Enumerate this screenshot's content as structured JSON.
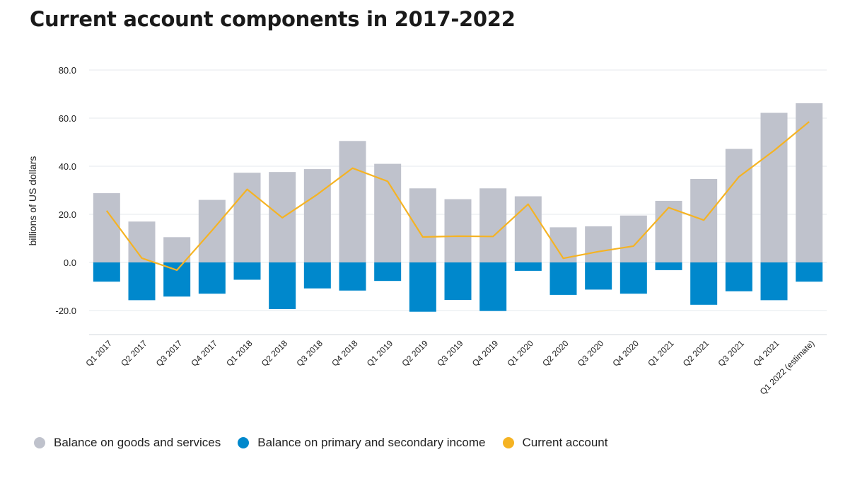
{
  "title": "Current account components in 2017-2022",
  "chart_data": {
    "type": "bar",
    "stacked": true,
    "ylabel": "billions of US dollars",
    "ylim": [
      -30,
      80
    ],
    "yticks": [
      80,
      60,
      40,
      20,
      0,
      -20
    ],
    "ytick_labels": [
      "80.0",
      "60.0",
      "40.0",
      "20.0",
      "0.0",
      "-20.0"
    ],
    "grid": true,
    "legend_position": "bottom-left",
    "categories": [
      "Q1 2017",
      "Q2 2017",
      "Q3 2017",
      "Q4 2017",
      "Q1 2018",
      "Q2 2018",
      "Q3 2018",
      "Q4 2018",
      "Q1 2019",
      "Q2 2019",
      "Q3 2019",
      "Q4 2019",
      "Q1 2020",
      "Q2 2020",
      "Q3 2020",
      "Q4 2020",
      "Q1 2021",
      "Q2 2021",
      "Q3 2021",
      "Q4 2021",
      "Q1 2022 (estimate)"
    ],
    "series": [
      {
        "name": "Balance on goods and services",
        "kind": "bar",
        "color": "#bfc2cc",
        "values": [
          28.8,
          17.0,
          10.5,
          26.0,
          37.3,
          37.6,
          38.8,
          50.5,
          41.0,
          30.8,
          26.3,
          30.8,
          27.5,
          14.6,
          15.0,
          19.5,
          25.6,
          34.7,
          47.2,
          62.2,
          66.2
        ]
      },
      {
        "name": "Balance on primary and secondary income",
        "kind": "bar",
        "color": "#0088cc",
        "values": [
          -8.0,
          -15.7,
          -14.2,
          -13.0,
          -7.2,
          -19.4,
          -10.8,
          -11.7,
          -7.7,
          -20.5,
          -15.6,
          -20.2,
          -3.5,
          -13.5,
          -11.3,
          -13.0,
          -3.2,
          -17.6,
          -12.0,
          -15.7,
          -8.0
        ]
      },
      {
        "name": "Current account",
        "kind": "line",
        "color": "#f5b323",
        "values": [
          21.5,
          1.8,
          -3.2,
          13.3,
          30.4,
          18.6,
          28.3,
          39.2,
          33.7,
          10.6,
          10.9,
          10.8,
          24.2,
          1.7,
          4.5,
          6.8,
          22.8,
          17.6,
          35.6,
          46.5,
          58.5
        ]
      }
    ]
  }
}
